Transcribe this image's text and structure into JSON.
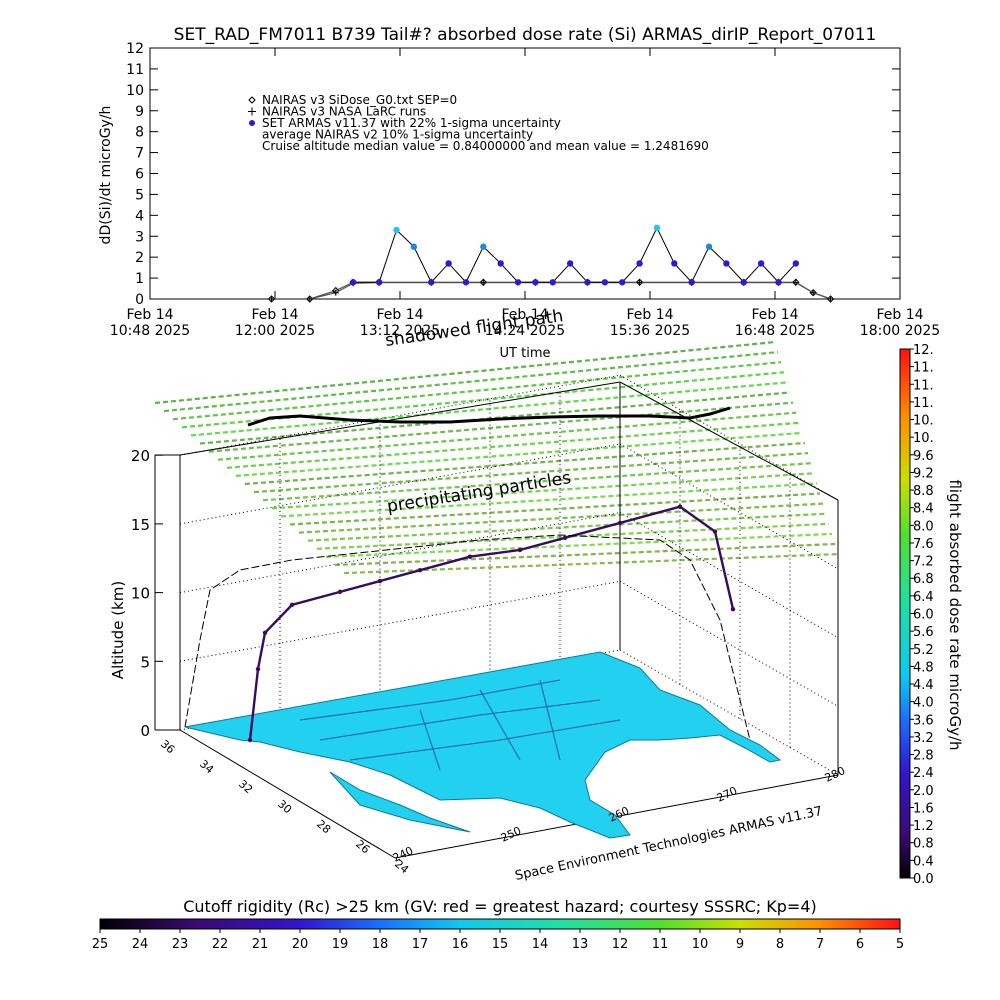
{
  "top_chart": {
    "title": "SET_RAD_FM7011  B739 Tail#? absorbed dose rate (Si) ARMAS_dirIP_Report_07011",
    "ylabel": "dD(Si)/dt microGy/h",
    "xlabel": "UT time",
    "yticks": [
      "0",
      "1",
      "2",
      "3",
      "4",
      "5",
      "6",
      "7",
      "8",
      "9",
      "10",
      "11",
      "12"
    ],
    "xticks": [
      {
        "line1": "Feb 14",
        "line2": "10:48 2025"
      },
      {
        "line1": "Feb 14",
        "line2": "12:00 2025"
      },
      {
        "line1": "Feb 14",
        "line2": "13:12 2025"
      },
      {
        "line1": "Feb 14",
        "line2": "14:24 2025"
      },
      {
        "line1": "Feb 14",
        "line2": "15:36 2025"
      },
      {
        "line1": "Feb 14",
        "line2": "16:48 2025"
      },
      {
        "line1": "Feb 14",
        "line2": "18:00 2025"
      }
    ],
    "legend": [
      {
        "symbol": "diamond",
        "text": "NAIRAS v3 SiDose_G0.txt SEP=0"
      },
      {
        "symbol": "plus",
        "text": "NAIRAS v3 NASA LaRC runs"
      },
      {
        "symbol": "dot",
        "text": "SET ARMAS v11.37 with 22% 1-sigma uncertainty"
      },
      {
        "symbol": "none",
        "text": "average NAIRAS v2 10% 1-sigma uncertainty"
      },
      {
        "symbol": "none",
        "text": "Cruise altitude median value = 0.84000000 and mean value = 1.2481690"
      }
    ],
    "overlay_labels": [
      "shadowed flight path"
    ]
  },
  "chart_data": [
    {
      "type": "scatter",
      "title": "SET_RAD_FM7011  B739 Tail#? absorbed dose rate (Si) ARMAS_dirIP_Report_07011",
      "xlabel": "UT time",
      "ylabel": "dD(Si)/dt microGy/h",
      "xlim": [
        "2025-02-14 10:48",
        "2025-02-14 18:00"
      ],
      "ylim": [
        0,
        12
      ],
      "grid": false,
      "legend_position": "top-left",
      "series": [
        {
          "name": "NAIRAS v3 SiDose_G0.txt SEP=0",
          "marker": "diamond",
          "color": "#000000",
          "x": [
            "11:58",
            "12:20",
            "12:35",
            "12:45",
            "13:00",
            "13:30",
            "14:00",
            "14:30",
            "15:00",
            "15:30",
            "16:00",
            "16:30",
            "16:50",
            "17:00",
            "17:10",
            "17:20"
          ],
          "y": [
            0,
            0,
            0.4,
            0.8,
            0.8,
            0.8,
            0.8,
            0.8,
            0.8,
            0.8,
            0.8,
            0.8,
            0.8,
            0.8,
            0.3,
            0
          ]
        },
        {
          "name": "NAIRAS v3 NASA LaRC runs",
          "marker": "plus",
          "color": "#000000",
          "x": [
            "11:58",
            "12:20",
            "12:35",
            "12:45",
            "13:00",
            "13:30",
            "14:00",
            "14:30",
            "15:00",
            "15:30",
            "16:00",
            "16:30",
            "16:50",
            "17:00",
            "17:10",
            "17:20"
          ],
          "y": [
            0,
            0,
            0.3,
            0.75,
            0.78,
            0.78,
            0.78,
            0.78,
            0.78,
            0.78,
            0.78,
            0.78,
            0.78,
            0.78,
            0.3,
            0
          ]
        },
        {
          "name": "SET ARMAS v11.37 with 22% 1-sigma uncertainty",
          "marker": "dot",
          "color": "#2a1bd6",
          "x": [
            "12:45",
            "13:00",
            "13:10",
            "13:20",
            "13:30",
            "13:40",
            "13:50",
            "14:00",
            "14:10",
            "14:20",
            "14:30",
            "14:40",
            "14:50",
            "15:00",
            "15:10",
            "15:20",
            "15:30",
            "15:40",
            "15:50",
            "16:00",
            "16:10",
            "16:20",
            "16:30",
            "16:40",
            "16:50",
            "17:00"
          ],
          "y": [
            0.8,
            0.8,
            3.3,
            2.5,
            0.8,
            1.7,
            0.8,
            2.5,
            1.7,
            0.8,
            0.8,
            0.8,
            1.7,
            0.8,
            0.8,
            0.8,
            1.7,
            3.4,
            1.7,
            0.8,
            2.5,
            1.7,
            0.8,
            1.7,
            0.8,
            1.7
          ]
        }
      ]
    },
    {
      "type": "line",
      "title": "",
      "xlabel": "",
      "ylabel": "Altitude (km)",
      "zticks": [
        "0",
        "5",
        "10",
        "15",
        "20"
      ],
      "lat_ticks": [
        "36",
        "34",
        "32",
        "30",
        "28",
        "26",
        "24"
      ],
      "lon_ticks": [
        "240",
        "250",
        "260",
        "270",
        "280"
      ],
      "overlay_labels": [
        "precipitating particles"
      ],
      "footer": "Space Environment Technologies ARMAS v11.37",
      "colorbar_right": {
        "label": "flight absorbed dose rate microGy/h",
        "ticks": [
          "0.0",
          "0.4",
          "0.8",
          "1.2",
          "1.6",
          "2.0",
          "2.4",
          "2.8",
          "3.2",
          "3.6",
          "4.0",
          "4.4",
          "4.8",
          "5.2",
          "5.6",
          "6.0",
          "6.4",
          "6.8",
          "7.2",
          "7.6",
          "8.0",
          "8.4",
          "8.8",
          "9.2",
          "9.6",
          "10.",
          "10.",
          "11.",
          "11.",
          "11.",
          "12."
        ],
        "range": [
          0,
          12
        ]
      },
      "colorbar_bottom": {
        "label": "Cutoff rigidity (Rc) >25 km (GV: red = greatest hazard; courtesy SSSRC; Kp=4)",
        "ticks": [
          "25",
          "24",
          "23",
          "22",
          "21",
          "20",
          "19",
          "18",
          "17",
          "16",
          "15",
          "14",
          "13",
          "12",
          "11",
          "10",
          "9",
          "8",
          "7",
          "6",
          "5"
        ],
        "range": [
          25,
          5
        ]
      },
      "series": [
        {
          "name": "flight altitude",
          "unit": "km",
          "values": [
            0,
            5,
            7.5,
            9,
            9,
            9,
            9,
            9,
            8.5,
            8.5,
            8.5,
            8.5,
            6,
            0
          ]
        }
      ]
    }
  ],
  "colors": {
    "armas_blue": "#2a1bd6",
    "armas_cyan": "#1ec8f0",
    "map_fill": "#22d0f0",
    "flight_track": "#3a0a60",
    "shadow_track": "#000000",
    "precip_green": "#7ad84a"
  }
}
